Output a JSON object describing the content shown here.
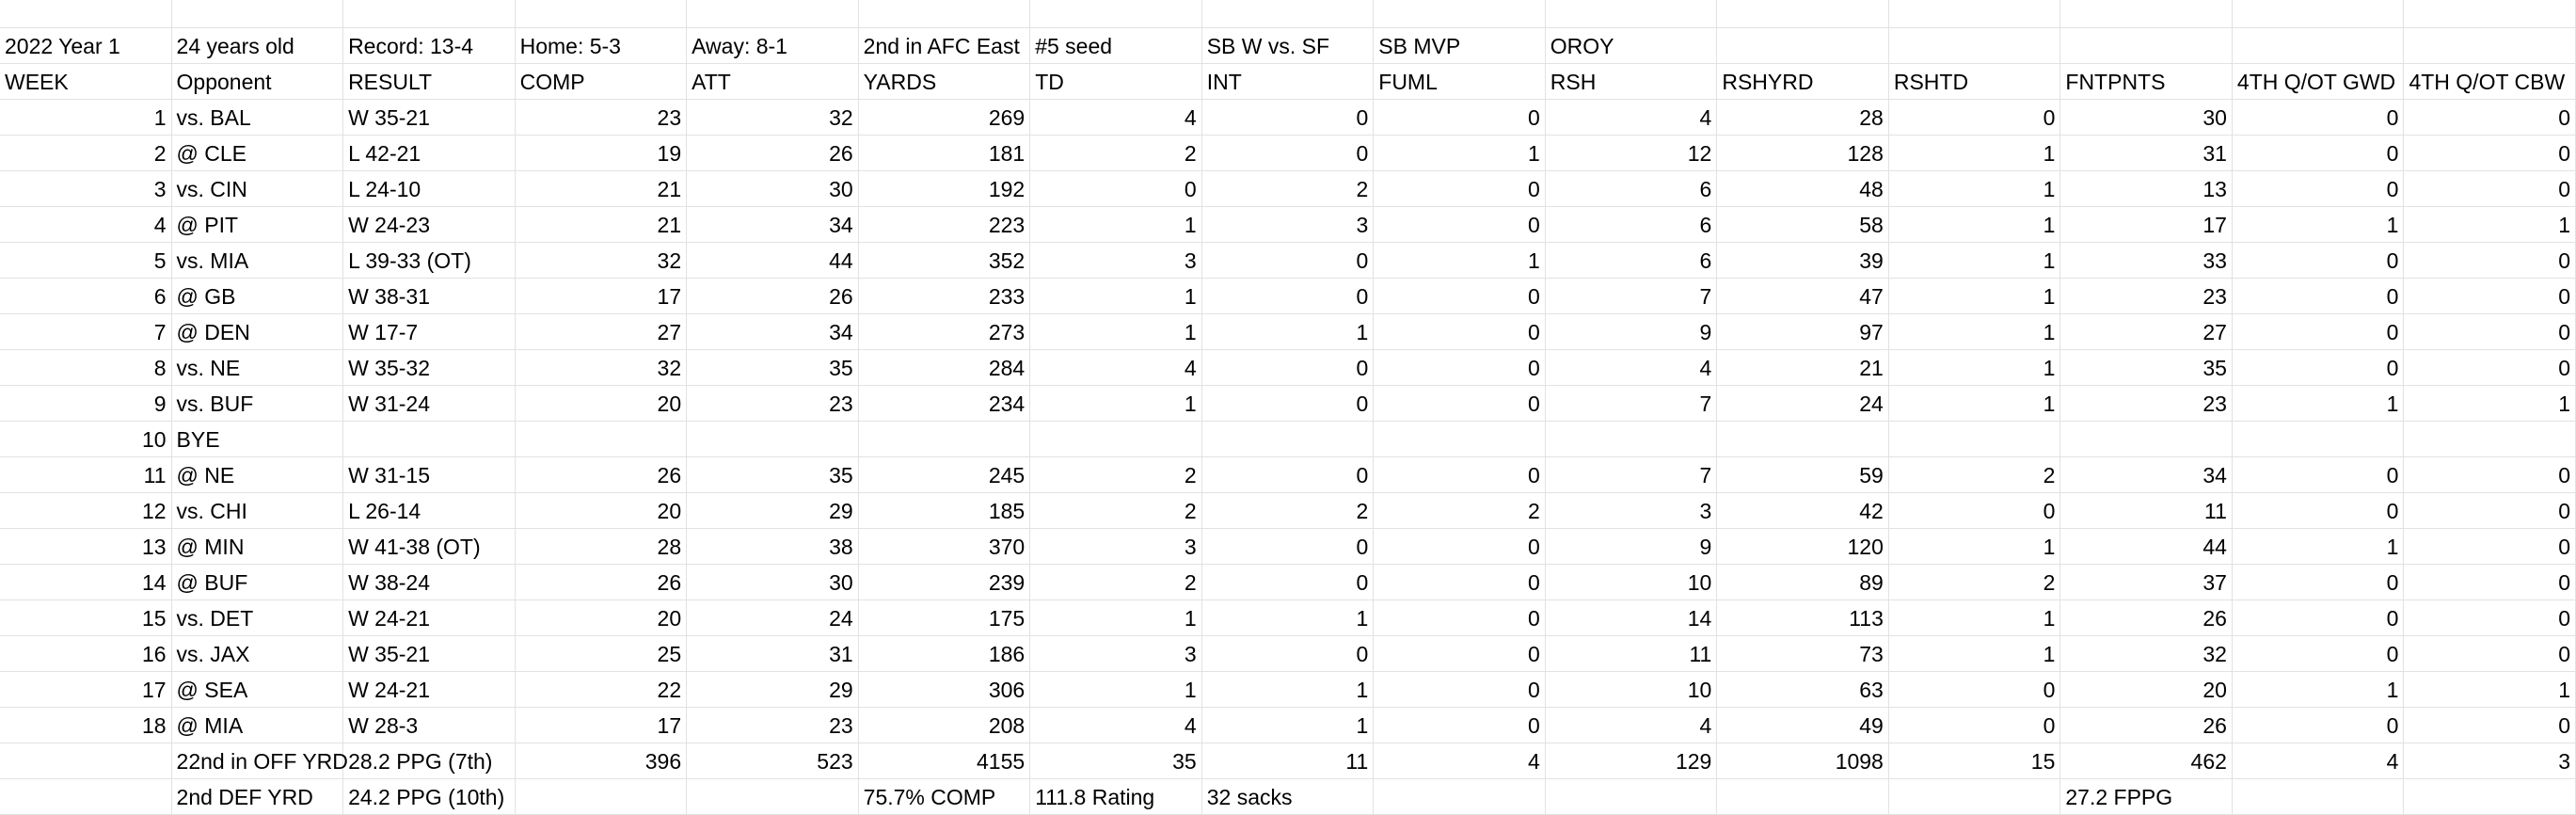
{
  "table": {
    "rows": [
      [
        "2022 Year 1",
        "24 years old",
        "Record: 13-4",
        "Home: 5-3",
        "Away: 8-1",
        "2nd in AFC East",
        "#5 seed",
        "SB W vs. SF",
        "SB MVP",
        "OROY",
        null,
        null,
        null,
        null,
        null
      ],
      [
        "WEEK",
        "Opponent",
        "RESULT",
        "COMP",
        "ATT",
        "YARDS",
        "TD",
        "INT",
        "FUML",
        "RSH",
        "RSHYRD",
        "RSHTD",
        "FNTPNTS",
        "4TH Q/OT GWD",
        "4TH Q/OT CBW"
      ],
      [
        1,
        "vs. BAL",
        "W 35-21",
        23,
        32,
        269,
        4,
        0,
        0,
        4,
        28,
        0,
        30,
        0,
        0
      ],
      [
        2,
        "@ CLE",
        "L 42-21",
        19,
        26,
        181,
        2,
        0,
        1,
        12,
        128,
        1,
        31,
        0,
        0
      ],
      [
        3,
        "vs. CIN",
        "L 24-10",
        21,
        30,
        192,
        0,
        2,
        0,
        6,
        48,
        1,
        13,
        0,
        0
      ],
      [
        4,
        "@ PIT",
        "W 24-23",
        21,
        34,
        223,
        1,
        3,
        0,
        6,
        58,
        1,
        17,
        1,
        1
      ],
      [
        5,
        "vs. MIA",
        "L 39-33 (OT)",
        32,
        44,
        352,
        3,
        0,
        1,
        6,
        39,
        1,
        33,
        0,
        0
      ],
      [
        6,
        "@ GB",
        "W 38-31",
        17,
        26,
        233,
        1,
        0,
        0,
        7,
        47,
        1,
        23,
        0,
        0
      ],
      [
        7,
        "@ DEN",
        "W 17-7",
        27,
        34,
        273,
        1,
        1,
        0,
        9,
        97,
        1,
        27,
        0,
        0
      ],
      [
        8,
        "vs. NE",
        "W 35-32",
        32,
        35,
        284,
        4,
        0,
        0,
        4,
        21,
        1,
        35,
        0,
        0
      ],
      [
        9,
        "vs. BUF",
        "W 31-24",
        20,
        23,
        234,
        1,
        0,
        0,
        7,
        24,
        1,
        23,
        1,
        1
      ],
      [
        10,
        "BYE",
        null,
        null,
        null,
        null,
        null,
        null,
        null,
        null,
        null,
        null,
        null,
        null,
        null
      ],
      [
        11,
        "@ NE",
        "W 31-15",
        26,
        35,
        245,
        2,
        0,
        0,
        7,
        59,
        2,
        34,
        0,
        0
      ],
      [
        12,
        "vs. CHI",
        "L 26-14",
        20,
        29,
        185,
        2,
        2,
        2,
        3,
        42,
        0,
        11,
        0,
        0
      ],
      [
        13,
        "@ MIN",
        "W 41-38 (OT)",
        28,
        38,
        370,
        3,
        0,
        0,
        9,
        120,
        1,
        44,
        1,
        0
      ],
      [
        14,
        "@ BUF",
        "W 38-24",
        26,
        30,
        239,
        2,
        0,
        0,
        10,
        89,
        2,
        37,
        0,
        0
      ],
      [
        15,
        "vs. DET",
        "W 24-21",
        20,
        24,
        175,
        1,
        1,
        0,
        14,
        113,
        1,
        26,
        0,
        0
      ],
      [
        16,
        "vs. JAX",
        "W 35-21",
        25,
        31,
        186,
        3,
        0,
        0,
        11,
        73,
        1,
        32,
        0,
        0
      ],
      [
        17,
        "@ SEA",
        "W 24-21",
        22,
        29,
        306,
        1,
        1,
        0,
        10,
        63,
        0,
        20,
        1,
        1
      ],
      [
        18,
        "@ MIA",
        "W 28-3",
        17,
        23,
        208,
        4,
        1,
        0,
        4,
        49,
        0,
        26,
        0,
        0
      ],
      [
        null,
        "22nd in OFF YRD",
        "28.2 PPG (7th)",
        396,
        523,
        4155,
        35,
        11,
        4,
        129,
        1098,
        15,
        462,
        4,
        3
      ],
      [
        null,
        "2nd DEF YRD",
        "24.2 PPG (10th)",
        null,
        null,
        "75.7% COMP",
        "111.8 Rating",
        "32 sacks",
        null,
        null,
        null,
        null,
        "27.2 FPPG",
        null,
        null
      ]
    ]
  }
}
